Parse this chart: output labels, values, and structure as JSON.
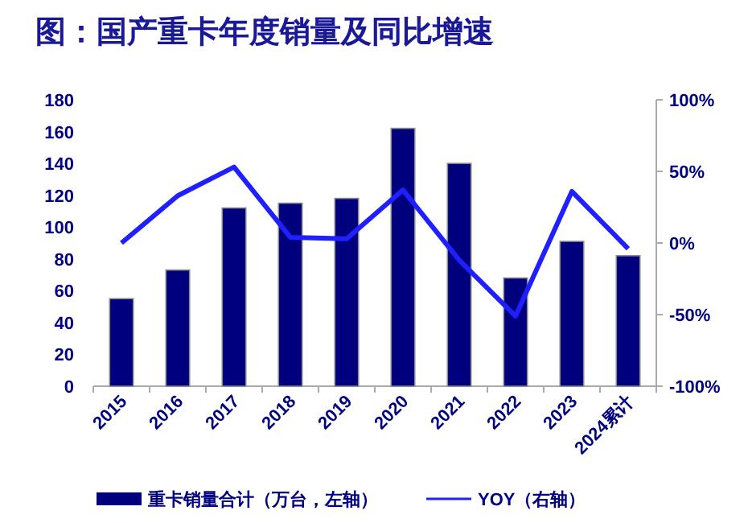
{
  "chart_data": {
    "type": "bar",
    "title": "图：国产重卡年度销量及同比增速",
    "categories": [
      "2015",
      "2016",
      "2017",
      "2018",
      "2019",
      "2020",
      "2021",
      "2022",
      "2023",
      "2024累计"
    ],
    "series": [
      {
        "name": "重卡销量合计（万台，左轴）",
        "color": "#00007f",
        "values": [
          55,
          73,
          112,
          115,
          118,
          162,
          140,
          68,
          91,
          82
        ]
      },
      {
        "name": "YOY（右轴）",
        "type": "line",
        "axis": "y2",
        "color": "#1f1fff",
        "values": [
          0,
          33,
          53,
          4,
          3,
          37,
          -12,
          -51,
          36,
          -4
        ]
      }
    ],
    "ylim": [
      0,
      180
    ],
    "yticks": [
      0,
      20,
      40,
      60,
      80,
      100,
      120,
      140,
      160,
      180
    ],
    "y2lim": [
      -100,
      100
    ],
    "y2ticks": [
      {
        "value": -100,
        "label": "-100%"
      },
      {
        "value": -50,
        "label": "-50%"
      },
      {
        "value": 0,
        "label": "0%"
      },
      {
        "value": 50,
        "label": "50%"
      },
      {
        "value": 100,
        "label": "100%"
      }
    ],
    "grid": false,
    "legend": "bottom"
  }
}
